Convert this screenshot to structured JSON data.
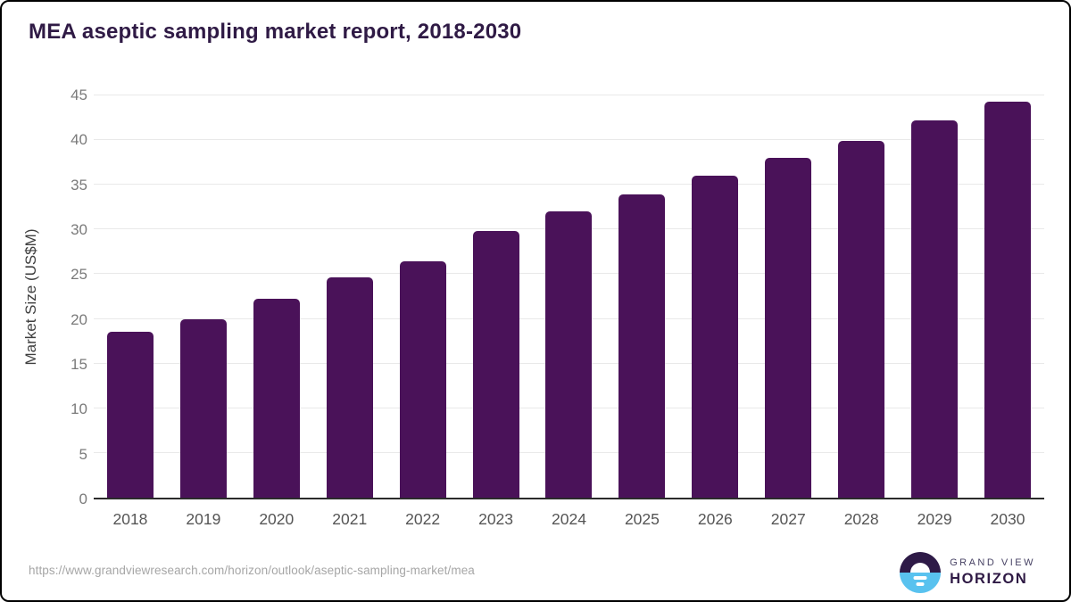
{
  "header": {
    "title": "MEA aseptic sampling market report, 2018-2030",
    "title_color": "#2f1a45"
  },
  "chart_data": {
    "type": "bar",
    "title": "MEA aseptic sampling market report, 2018-2030",
    "categories": [
      "2018",
      "2019",
      "2020",
      "2021",
      "2022",
      "2023",
      "2024",
      "2025",
      "2026",
      "2027",
      "2028",
      "2029",
      "2030"
    ],
    "values": [
      18.6,
      20.0,
      22.3,
      24.6,
      26.4,
      29.8,
      32.0,
      33.9,
      36.0,
      38.0,
      39.9,
      42.2,
      44.3
    ],
    "xlabel": "",
    "ylabel": "Market Size (US$M)",
    "ylim": [
      0,
      45
    ],
    "yticks": [
      0,
      5,
      10,
      15,
      20,
      25,
      30,
      35,
      40,
      45
    ],
    "grid": true,
    "legend": "none",
    "bar_color": "#4a1259",
    "gridline_color": "#e9e9e9",
    "axis_line_color": "#2b2b2b",
    "y_tick_label_color": "#7a7a7a",
    "x_tick_label_color": "#555555"
  },
  "footer": {
    "source_url": "https://www.grandviewresearch.com/horizon/outlook/aseptic-sampling-market/mea",
    "logo": {
      "line1": "GRAND VIEW",
      "line2": "HORIZON",
      "icon_name": "horizon-sun-icon",
      "circle_top_color": "#2e1a47",
      "circle_bottom_color": "#59c2ef",
      "line1_color": "#474264",
      "line2_color": "#2f1a45"
    }
  }
}
